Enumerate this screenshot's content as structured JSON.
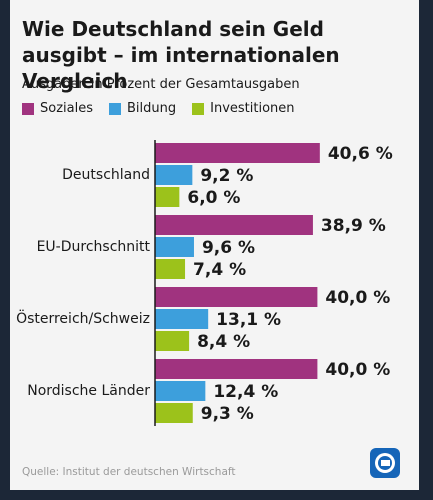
{
  "chart_data": {
    "type": "bar",
    "orientation": "horizontal",
    "title": "Wie Deutschland sein Geld ausgibt – im internationalen Vergleich",
    "subtitle": "Ausgaben in Prozent der Gesamtausgaben",
    "categories": [
      "Deutschland",
      "EU-Durchschnitt",
      "Österreich/Schweiz",
      "Nordische Länder"
    ],
    "series": [
      {
        "name": "Soziales",
        "color": "#a0337f",
        "values": [
          40.6,
          38.9,
          40.0,
          40.0
        ],
        "value_labels": [
          "40,6 %",
          "38,9 %",
          "40,0 %",
          "40,0 %"
        ]
      },
      {
        "name": "Bildung",
        "color": "#3d9fdc",
        "values": [
          9.2,
          9.6,
          13.1,
          12.4
        ],
        "value_labels": [
          "9,2 %",
          "9,6 %",
          "13,1 %",
          "12,4 %"
        ]
      },
      {
        "name": "Investitionen",
        "color": "#9cc21b",
        "values": [
          6.0,
          7.4,
          8.4,
          9.3
        ],
        "value_labels": [
          "6,0 %",
          "7,4 %",
          "8,4 %",
          "9,3 %"
        ]
      }
    ],
    "source": "Quelle: Institut der deutschen Wirtschaft"
  }
}
